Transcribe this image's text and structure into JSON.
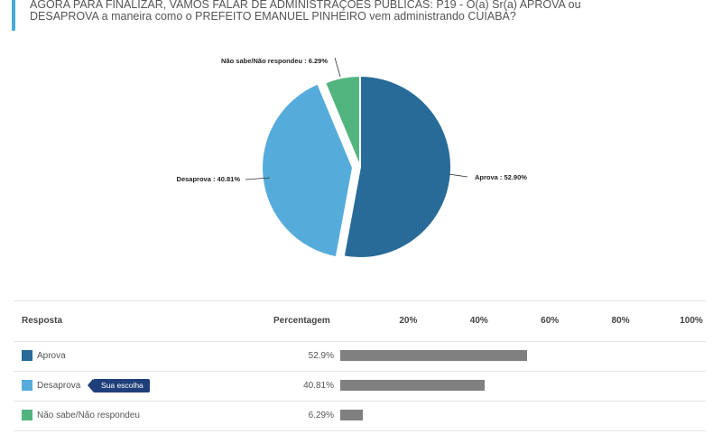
{
  "question": {
    "line1": "AGORA PARA FINALIZAR, VAMOS FALAR DE ADMINISTRAÇÕES PÚBLICAS: P19 - O(a) Sr(a) APROVA ou",
    "line2": "DESAPROVA a maneira como o PREFEITO EMANUEL PINHEIRO vem administrando CUIABÁ?"
  },
  "chart_data": {
    "type": "pie",
    "labels": [
      "Aprova",
      "Desaprova",
      "Não sabe/Não respondeu"
    ],
    "values": [
      52.9,
      40.81,
      6.29
    ],
    "slice_labels": [
      "Aprova : 52.90%",
      "Desaprova : 40.81%",
      "Não sabe/Não respondeu : 6.29%"
    ],
    "colors": [
      "#286b98",
      "#55acdb",
      "#52b47e"
    ],
    "exploded": "Desaprova"
  },
  "table": {
    "headers": {
      "response": "Resposta",
      "percentage": "Percentagem"
    },
    "ticks": [
      "20%",
      "40%",
      "60%",
      "80%",
      "100%"
    ],
    "bar_color": "#808080",
    "rows": [
      {
        "label": "Aprova",
        "pct_text": "52.9%",
        "value": 52.9,
        "color": "#286b98",
        "badge": ""
      },
      {
        "label": "Desaprova",
        "pct_text": "40.81%",
        "value": 40.81,
        "color": "#55acdb",
        "badge": "Sua escolha"
      },
      {
        "label": "Não sabe/Não respondeu",
        "pct_text": "6.29%",
        "value": 6.29,
        "color": "#52b47e",
        "badge": ""
      }
    ]
  }
}
